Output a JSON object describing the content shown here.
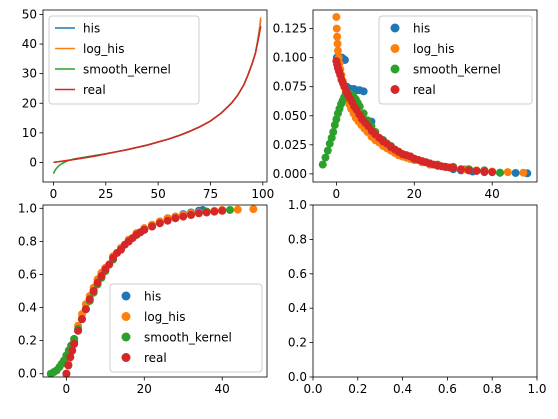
{
  "colors": {
    "his": "#1f77b4",
    "log_his": "#ff7f0e",
    "smooth_kernel": "#2ca02c",
    "real": "#d62728"
  },
  "chart_data": [
    {
      "id": "top-left",
      "type": "line",
      "title": "",
      "xlabel": "",
      "ylabel": "",
      "xlim": [
        -5,
        102
      ],
      "ylim": [
        -6.6,
        51.5
      ],
      "xticks": [
        0,
        25,
        50,
        75,
        100
      ],
      "yticks": [
        0,
        10,
        20,
        30,
        40,
        50
      ],
      "grid": false,
      "legend": {
        "placement": "upper-left",
        "entries": [
          "his",
          "log_his",
          "smooth_kernel",
          "real"
        ]
      },
      "series": [
        {
          "name": "his",
          "x": [
            0,
            5,
            10,
            15,
            20,
            25,
            30,
            35,
            40,
            45,
            50,
            55,
            60,
            65,
            70,
            75,
            80,
            85,
            88,
            91,
            93,
            95,
            96.5,
            97.5,
            98.3,
            99
          ],
          "y": [
            0.05,
            0.5,
            1.05,
            1.6,
            2.2,
            2.9,
            3.6,
            4.3,
            5.1,
            5.9,
            6.9,
            7.9,
            9.1,
            10.5,
            12.1,
            14.0,
            16.6,
            20.0,
            22.7,
            26.3,
            29.7,
            33.6,
            37.0,
            40.8,
            44.4,
            48.2
          ]
        },
        {
          "name": "log_his",
          "x": [
            0,
            5,
            10,
            15,
            20,
            25,
            30,
            35,
            40,
            45,
            50,
            55,
            60,
            65,
            70,
            75,
            80,
            85,
            88,
            91,
            93,
            95,
            96.5,
            97.5,
            98.3,
            99
          ],
          "y": [
            0.05,
            0.5,
            1.05,
            1.6,
            2.2,
            2.9,
            3.6,
            4.3,
            5.1,
            5.9,
            6.9,
            7.9,
            9.1,
            10.5,
            12.1,
            14.0,
            16.6,
            20.0,
            22.7,
            26.3,
            29.7,
            33.6,
            37.0,
            41.0,
            44.8,
            49.0
          ]
        },
        {
          "name": "smooth_kernel",
          "x": [
            0,
            0.5,
            1,
            2,
            3,
            5,
            7,
            10,
            15,
            20,
            25,
            30,
            35,
            40,
            45,
            50,
            55,
            60,
            65,
            70,
            75,
            80,
            85,
            88,
            91,
            93,
            95,
            96.5,
            97.5,
            98.3,
            99
          ],
          "y": [
            -3.8,
            -3.0,
            -2.4,
            -1.5,
            -0.9,
            0.0,
            0.6,
            1.2,
            1.8,
            2.4,
            2.95,
            3.6,
            4.3,
            5.1,
            5.9,
            6.9,
            7.9,
            9.1,
            10.5,
            12.1,
            14.0,
            16.6,
            20.0,
            22.7,
            26.3,
            29.7,
            33.6,
            37.0,
            40.8,
            43.8,
            46.0
          ]
        },
        {
          "name": "real",
          "x": [
            0,
            5,
            10,
            15,
            20,
            25,
            30,
            35,
            40,
            45,
            50,
            55,
            60,
            65,
            70,
            75,
            80,
            85,
            88,
            91,
            93,
            95,
            96.5,
            97.5,
            98.3,
            99
          ],
          "y": [
            0.05,
            0.5,
            1.05,
            1.6,
            2.2,
            2.9,
            3.6,
            4.3,
            5.1,
            5.9,
            6.9,
            7.9,
            9.1,
            10.5,
            12.1,
            14.0,
            16.6,
            20.0,
            22.7,
            26.3,
            29.7,
            33.6,
            37.0,
            40.3,
            43.2,
            46.0
          ]
        }
      ]
    },
    {
      "id": "top-right",
      "type": "scatter",
      "title": "",
      "xlabel": "",
      "ylabel": "",
      "xlim": [
        -6,
        51.5
      ],
      "ylim": [
        -0.007,
        0.141
      ],
      "xticks": [
        0,
        20,
        40
      ],
      "yticks": [
        0.0,
        0.025,
        0.05,
        0.075,
        0.1,
        0.125
      ],
      "ytick_labels": [
        "0.000",
        "0.025",
        "0.050",
        "0.075",
        "0.100",
        "0.125"
      ],
      "grid": false,
      "legend": {
        "placement": "upper-right",
        "entries": [
          "his",
          "log_his",
          "smooth_kernel",
          "real"
        ]
      },
      "series": [
        {
          "name": "his",
          "x": [
            0.1,
            0.3,
            0.6,
            1.0,
            1.4,
            1.8,
            2.2,
            2.7,
            3.2,
            3.8,
            4.5,
            5.2,
            6.0,
            7.0,
            8.0,
            9.0,
            10,
            11,
            12,
            13,
            14,
            15,
            16,
            17,
            18,
            19,
            20,
            22,
            24,
            26,
            28,
            30,
            32,
            35,
            38,
            42,
            46,
            49
          ],
          "y": [
            0.1,
            0.1,
            0.1,
            0.1,
            0.1,
            0.099,
            0.098,
            0.075,
            0.073,
            0.073,
            0.073,
            0.072,
            0.072,
            0.071,
            0.045,
            0.045,
            0.03,
            0.03,
            0.029,
            0.025,
            0.022,
            0.02,
            0.018,
            0.015,
            0.014,
            0.013,
            0.012,
            0.01,
            0.008,
            0.007,
            0.006,
            0.004,
            0.003,
            0.002,
            0.0015,
            0.001,
            0.0008,
            0.0005
          ]
        },
        {
          "name": "log_his",
          "x": [
            0,
            0.1,
            0.2,
            0.3,
            0.4,
            0.6,
            0.8,
            1.0,
            1.3,
            1.6,
            2.0,
            2.4,
            2.8,
            3.3,
            3.8,
            4.4,
            5.0,
            5.7,
            6.4,
            7.2,
            8.0,
            9.0,
            10,
            11,
            12,
            13,
            14,
            15,
            16,
            17,
            18,
            19,
            20,
            22,
            24,
            26,
            28,
            30,
            33,
            36,
            40,
            44,
            48
          ],
          "y": [
            0.135,
            0.125,
            0.118,
            0.112,
            0.106,
            0.1,
            0.095,
            0.09,
            0.085,
            0.08,
            0.075,
            0.07,
            0.065,
            0.06,
            0.056,
            0.052,
            0.048,
            0.045,
            0.042,
            0.039,
            0.036,
            0.032,
            0.029,
            0.027,
            0.024,
            0.022,
            0.02,
            0.018,
            0.016,
            0.015,
            0.014,
            0.013,
            0.012,
            0.01,
            0.008,
            0.007,
            0.006,
            0.005,
            0.004,
            0.003,
            0.002,
            0.0015,
            0.001
          ]
        },
        {
          "name": "smooth_kernel",
          "x": [
            -3.5,
            -2.8,
            -2.2,
            -1.7,
            -1.2,
            -0.8,
            -0.4,
            0,
            0.4,
            0.8,
            1.2,
            1.6,
            2.0,
            2.5,
            3.0,
            3.5,
            4.0,
            4.5,
            5.0,
            5.5,
            6.0,
            7.0,
            8.0,
            9.0,
            10,
            12,
            14,
            16,
            18,
            20,
            23,
            26,
            30,
            34,
            38,
            42
          ],
          "y": [
            0.008,
            0.014,
            0.02,
            0.026,
            0.031,
            0.036,
            0.042,
            0.047,
            0.052,
            0.056,
            0.06,
            0.063,
            0.066,
            0.068,
            0.069,
            0.069,
            0.068,
            0.066,
            0.064,
            0.061,
            0.058,
            0.052,
            0.046,
            0.041,
            0.036,
            0.029,
            0.024,
            0.019,
            0.016,
            0.013,
            0.01,
            0.008,
            0.006,
            0.004,
            0.003,
            0.001
          ]
        },
        {
          "name": "real",
          "x": [
            0,
            0.2,
            0.4,
            0.7,
            1.0,
            1.3,
            1.7,
            2.1,
            2.5,
            3.0,
            3.5,
            4.0,
            4.6,
            5.2,
            5.9,
            6.6,
            7.4,
            8.2,
            9.1,
            10,
            11,
            12,
            13,
            14,
            15,
            16,
            17,
            18,
            19,
            20,
            21,
            22,
            23,
            24,
            25,
            26,
            27,
            28,
            29,
            30,
            32,
            34,
            36,
            38,
            40
          ],
          "y": [
            0.097,
            0.094,
            0.091,
            0.088,
            0.085,
            0.081,
            0.078,
            0.075,
            0.071,
            0.068,
            0.065,
            0.062,
            0.058,
            0.055,
            0.051,
            0.047,
            0.044,
            0.041,
            0.037,
            0.034,
            0.031,
            0.028,
            0.026,
            0.023,
            0.021,
            0.019,
            0.017,
            0.016,
            0.015,
            0.013,
            0.012,
            0.011,
            0.01,
            0.009,
            0.008,
            0.007,
            0.0065,
            0.006,
            0.0055,
            0.005,
            0.004,
            0.003,
            0.0025,
            0.002,
            0.0015
          ]
        }
      ]
    },
    {
      "id": "bottom-left",
      "type": "scatter",
      "title": "",
      "xlabel": "",
      "ylabel": "",
      "xlim": [
        -6,
        51.5
      ],
      "ylim": [
        -0.02,
        1.02
      ],
      "xticks": [
        0,
        20,
        40
      ],
      "yticks": [
        0.0,
        0.2,
        0.4,
        0.6,
        0.8,
        1.0
      ],
      "ytick_labels": [
        "0.0",
        "0.2",
        "0.4",
        "0.6",
        "0.8",
        "1.0"
      ],
      "grid": false,
      "legend": {
        "placement": "lower-right",
        "entries": [
          "his",
          "log_his",
          "smooth_kernel",
          "real"
        ]
      },
      "series": [
        {
          "name": "his",
          "x": [
            0,
            0.5,
            1,
            1.5,
            2,
            3,
            4,
            5,
            6,
            7,
            8,
            9,
            10,
            12,
            14,
            16,
            18,
            20,
            22,
            24,
            26,
            28,
            30,
            32,
            34,
            35
          ],
          "y": [
            0.0,
            0.05,
            0.1,
            0.14,
            0.19,
            0.26,
            0.33,
            0.39,
            0.45,
            0.5,
            0.55,
            0.59,
            0.63,
            0.7,
            0.75,
            0.8,
            0.84,
            0.87,
            0.9,
            0.92,
            0.94,
            0.95,
            0.965,
            0.975,
            0.985,
            0.99
          ]
        },
        {
          "name": "log_his",
          "x": [
            0,
            0.5,
            1,
            1.5,
            2,
            3,
            4,
            5,
            6,
            7,
            8,
            9,
            10,
            12,
            14,
            16,
            18,
            20,
            22,
            24,
            26,
            28,
            30,
            32,
            34,
            36,
            38,
            40,
            44,
            48
          ],
          "y": [
            0.0,
            0.06,
            0.12,
            0.17,
            0.21,
            0.29,
            0.36,
            0.42,
            0.47,
            0.52,
            0.57,
            0.61,
            0.64,
            0.71,
            0.76,
            0.81,
            0.85,
            0.88,
            0.9,
            0.92,
            0.94,
            0.95,
            0.96,
            0.97,
            0.975,
            0.98,
            0.985,
            0.99,
            0.992,
            0.995
          ]
        },
        {
          "name": "smooth_kernel",
          "x": [
            -4,
            -3.2,
            -2.5,
            -1.8,
            -1.2,
            -0.6,
            0,
            0.6,
            1.2,
            2,
            3,
            4,
            5,
            6,
            7,
            8,
            9,
            10,
            12,
            14,
            16,
            18,
            20,
            24,
            28,
            32,
            36,
            42
          ],
          "y": [
            0.0,
            0.01,
            0.02,
            0.04,
            0.06,
            0.08,
            0.11,
            0.14,
            0.17,
            0.21,
            0.27,
            0.33,
            0.39,
            0.44,
            0.49,
            0.54,
            0.58,
            0.62,
            0.69,
            0.75,
            0.8,
            0.84,
            0.87,
            0.91,
            0.94,
            0.96,
            0.98,
            0.99
          ]
        },
        {
          "name": "real",
          "x": [
            0,
            0.5,
            1,
            1.5,
            2,
            3,
            4,
            5,
            6,
            7,
            8,
            9,
            10,
            11,
            12,
            13,
            14,
            15,
            16,
            17,
            18,
            19,
            20,
            22,
            24,
            26,
            28,
            30,
            32,
            34,
            36,
            38,
            40
          ],
          "y": [
            0.0,
            0.05,
            0.1,
            0.14,
            0.18,
            0.26,
            0.33,
            0.39,
            0.45,
            0.5,
            0.55,
            0.59,
            0.63,
            0.66,
            0.7,
            0.73,
            0.75,
            0.78,
            0.8,
            0.82,
            0.84,
            0.855,
            0.87,
            0.89,
            0.91,
            0.925,
            0.94,
            0.95,
            0.96,
            0.97,
            0.975,
            0.98,
            0.985
          ]
        }
      ]
    },
    {
      "id": "bottom-right",
      "type": "scatter",
      "title": "",
      "xlabel": "",
      "ylabel": "",
      "xlim": [
        0,
        1
      ],
      "ylim": [
        0,
        1
      ],
      "xticks": [
        0,
        0.2,
        0.4,
        0.6,
        0.8,
        1.0
      ],
      "xtick_labels": [
        "0.0",
        "0.2",
        "0.4",
        "0.6",
        "0.8",
        "1.0"
      ],
      "yticks": [
        0,
        0.2,
        0.4,
        0.6,
        0.8,
        1.0
      ],
      "ytick_labels": [
        "0.0",
        "0.2",
        "0.4",
        "0.6",
        "0.8",
        "1.0"
      ],
      "grid": false,
      "legend": null,
      "series": []
    }
  ]
}
